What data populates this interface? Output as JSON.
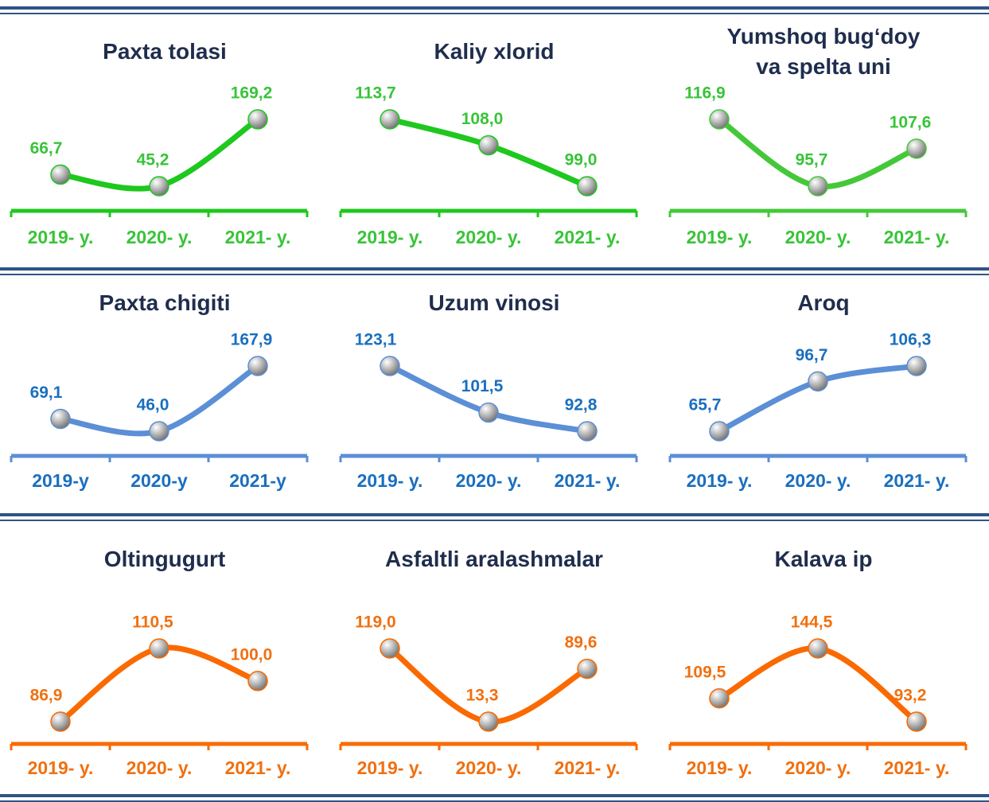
{
  "chart_data": [
    {
      "type": "line",
      "title": "Paxta tolasi",
      "categories": [
        "2019- y.",
        "2020- y.",
        "2021- y."
      ],
      "values": [
        66.7,
        45.2,
        169.2
      ],
      "value_labels": [
        "66,7",
        "45,2",
        "169,2"
      ],
      "color": "#1ec81e",
      "text_color": "#38c438"
    },
    {
      "type": "line",
      "title": "Kaliy xlorid",
      "categories": [
        "2019- y.",
        "2020- y.",
        "2021- y."
      ],
      "values": [
        113.7,
        108.0,
        99.0
      ],
      "value_labels": [
        "113,7",
        "108,0",
        "99,0"
      ],
      "color": "#1ec81e",
      "text_color": "#38c438"
    },
    {
      "type": "line",
      "title": "Yumshoq bug‘doy va spelta uni",
      "categories": [
        "2019- y.",
        "2020- y.",
        "2021- y."
      ],
      "values": [
        116.9,
        95.7,
        107.6
      ],
      "value_labels": [
        "116,9",
        "95,7",
        "107,6"
      ],
      "color": "#44c83a",
      "text_color": "#38c438"
    },
    {
      "type": "line",
      "title": "Paxta chigiti",
      "categories": [
        "2019-y",
        "2020-y",
        "2021-y"
      ],
      "values": [
        69.1,
        46.0,
        167.9
      ],
      "value_labels": [
        "69,1",
        "46,0",
        "167,9"
      ],
      "color": "#5b8fd6",
      "text_color": "#1a6fbf"
    },
    {
      "type": "line",
      "title": "Uzum vinosi",
      "categories": [
        "2019- y.",
        "2020- y.",
        "2021- y."
      ],
      "values": [
        123.1,
        101.5,
        92.8
      ],
      "value_labels": [
        "123,1",
        "101,5",
        "92,8"
      ],
      "color": "#5b8fd6",
      "text_color": "#1a6fbf"
    },
    {
      "type": "line",
      "title": "Aroq",
      "categories": [
        "2019- y.",
        "2020- y.",
        "2021- y."
      ],
      "values": [
        65.7,
        96.7,
        106.3
      ],
      "value_labels": [
        "65,7",
        "96,7",
        "106,3"
      ],
      "color": "#5b8fd6",
      "text_color": "#1a6fbf"
    },
    {
      "type": "line",
      "title": "Oltingugurt",
      "categories": [
        "2019- y.",
        "2020- y.",
        "2021- y."
      ],
      "values": [
        86.9,
        110.5,
        100.0
      ],
      "value_labels": [
        "86,9",
        "110,5",
        "100,0"
      ],
      "color": "#fa6a00",
      "text_color": "#f07010"
    },
    {
      "type": "line",
      "title": "Asfaltli aralashmalar",
      "categories": [
        "2019- y.",
        "2020- y.",
        "2021- y."
      ],
      "values": [
        119.0,
        13.3,
        89.6
      ],
      "value_labels": [
        "119,0",
        "13,3",
        "89,6"
      ],
      "color": "#fa6a00",
      "text_color": "#f07010"
    },
    {
      "type": "line",
      "title": "Kalava ip",
      "categories": [
        "2019- y.",
        "2020- y.",
        "2021- y."
      ],
      "values": [
        109.5,
        144.5,
        93.2
      ],
      "value_labels": [
        "109,5",
        "144,5",
        "93,2"
      ],
      "color": "#fa6a00",
      "text_color": "#f07010"
    }
  ]
}
